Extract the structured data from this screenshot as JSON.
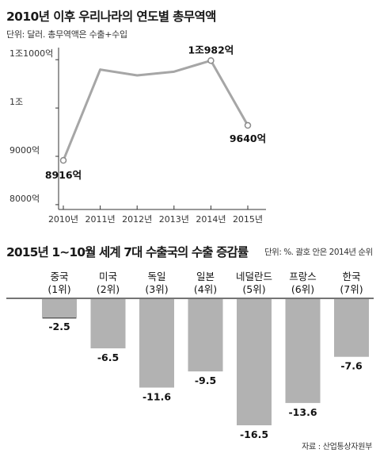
{
  "charts": {
    "line": {
      "title": "2010년 이후 우리나라의 연도별 총무역액",
      "unit_note": "단위: 달러. 총무역액은 수출+수입"
    },
    "bar": {
      "title": "2015년 1~10월 세계 7대 수출국의 수출 증감률",
      "unit_note": "단위: %. 괄호 안은 2014년 순위"
    }
  },
  "source": "자료 : 산업통상자원부",
  "colors": {
    "line": "#a6a6a6",
    "bar": "#b2b2b2",
    "axis": "#333333",
    "grid": "#cfcfcf"
  },
  "chart_data": [
    {
      "type": "line",
      "title": "2010년 이후 우리나라의 연도별 총무역액",
      "categories": [
        "2010년",
        "2011년",
        "2012년",
        "2013년",
        "2014년",
        "2015년"
      ],
      "values": [
        891600000000,
        1079600000000,
        1067500000000,
        1075200000000,
        1098200000000,
        964000000000
      ],
      "point_labels": [
        "8916억",
        "",
        "",
        "",
        "1조982억",
        "9640억"
      ],
      "ytick_values": [
        800000000000,
        900000000000,
        1000000000000,
        1100000000000
      ],
      "ytick_labels": [
        "8000억",
        "9000억",
        "1조",
        "1조1000억"
      ],
      "ylim": [
        790000000000,
        1125000000000
      ],
      "grid": false
    },
    {
      "type": "bar",
      "title": "2015년 1~10월 세계 7대 수출국의 수출 증감률",
      "categories": [
        {
          "name": "중국",
          "rank": "(1위)"
        },
        {
          "name": "미국",
          "rank": "(2위)"
        },
        {
          "name": "독일",
          "rank": "(3위)"
        },
        {
          "name": "일본",
          "rank": "(4위)"
        },
        {
          "name": "네덜란드",
          "rank": "(5위)"
        },
        {
          "name": "프랑스",
          "rank": "(6위)"
        },
        {
          "name": "한국",
          "rank": "(7위)"
        }
      ],
      "flags": [
        "china-flag",
        "usa-flag",
        "germany-flag",
        "japan-flag",
        "netherlands-flag",
        "france-flag",
        "korea-flag"
      ],
      "values": [
        -2.5,
        -6.5,
        -11.6,
        -9.5,
        -16.5,
        -13.6,
        -7.6
      ],
      "value_labels": [
        "-2.5",
        "-6.5",
        "-11.6",
        "-9.5",
        "-16.5",
        "-13.6",
        "-7.6"
      ],
      "ylim": [
        -16.5,
        0
      ]
    }
  ]
}
